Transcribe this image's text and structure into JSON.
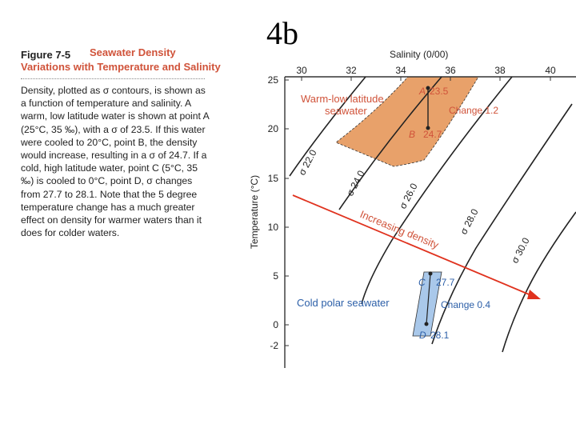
{
  "slide_title": "4b",
  "caption": {
    "figure_number": "Figure 7-5",
    "figure_title_line1": "Seawater Density",
    "figure_title_line2": "Variations with Temperature and Salinity",
    "body": "Density, plotted as σ contours, is shown as a function of temperature and salinity. A warm, low latitude water is shown at point A (25°C, 35 ‰), with a σ of 23.5. If this water were cooled to 20°C, point B, the density would increase, resulting in a σ of 24.7. If a cold, high latitude water, point C (5°C, 35 ‰) is cooled to 0°C, point D, σ changes from 27.7 to 28.1. Note that the 5 degree temperature change has a much greater effect on density for warmer waters than it does for colder waters."
  },
  "diagram": {
    "x_axis_label": "Salinity (0/00)",
    "y_axis_label": "Temperature (°C)",
    "x_ticks": [
      "30",
      "32",
      "34",
      "36",
      "38",
      "40"
    ],
    "y_ticks": [
      "25",
      "20",
      "15",
      "10",
      "5",
      "0",
      "-2"
    ],
    "contours": [
      "σ 22.0",
      "σ 24.0",
      "σ 26.0",
      "σ 28.0",
      "σ 30.0"
    ],
    "warm_region_label_line1": "Warm-low latitude",
    "warm_region_label_line2": "seawater",
    "cold_region_label": "Cold polar seawater",
    "arrow_label_line1": "Increasing",
    "arrow_label_line2": "density",
    "point_a": "A",
    "point_a_value": "23.5",
    "point_b": "B",
    "point_b_value": "24.7",
    "point_c": "C",
    "point_c_value": "27.7",
    "point_d": "D",
    "point_d_value": "28.1",
    "change_warm": "Change 1.2",
    "change_cold": "Change 0.4",
    "colors": {
      "warm": "#e8a16a",
      "cold": "#a9c8ea",
      "arrow": "#e0321e",
      "label_red": "#d0533a",
      "label_blue": "#2c5fa8"
    }
  }
}
